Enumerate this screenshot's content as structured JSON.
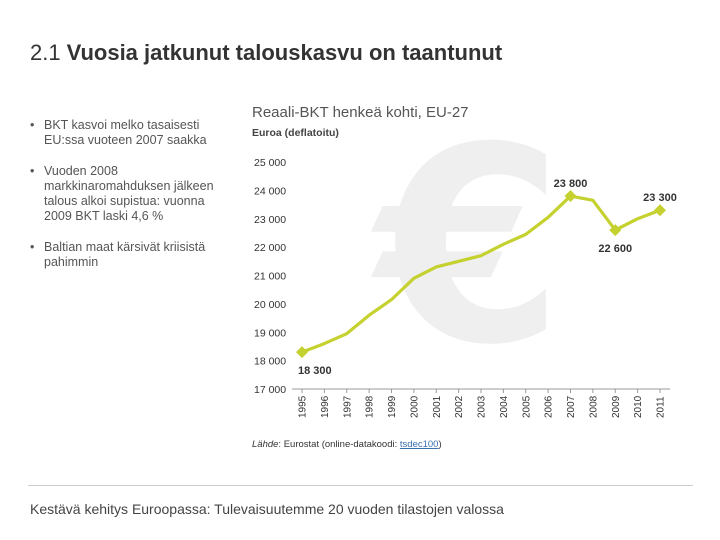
{
  "slide": {
    "number": "2.1",
    "title": "Vuosia jatkunut talouskasvu on taantunut",
    "bullet_symbol": "•",
    "bullets": [
      "BKT kasvoi melko tasaisesti EU:ssa vuoteen 2007 saakka",
      "Vuoden 2008 markkinaromahduksen jälkeen talous alkoi supistua: vuonna 2009 BKT laski 4,6 %",
      "Baltian maat kärsivät kriisistä pahimmin"
    ],
    "footer": "Kestävä kehitys Euroopassa: Tulevaisuutemme 20 vuoden tilastojen valossa"
  },
  "source": {
    "label": "Lähde",
    "text": ": Eurostat (online-datakoodi: ",
    "code": "tsdec100",
    "close": ")"
  },
  "colors": {
    "line": "#c5d12e",
    "watermark": "#efefef",
    "axis": "#999999",
    "text": "#333333"
  },
  "chart_data": {
    "type": "line",
    "title": "Reaali-BKT henkeä kohti, EU-27",
    "ylabel": "Euroa (deflatoitu)",
    "xlabel": "",
    "x": [
      "1995",
      "1996",
      "1997",
      "1998",
      "1999",
      "2000",
      "2001",
      "2002",
      "2003",
      "2004",
      "2005",
      "2006",
      "2007",
      "2008",
      "2009",
      "2010",
      "2011"
    ],
    "series": [
      {
        "values": [
          18300,
          18600,
          18950,
          19600,
          20150,
          20900,
          21300,
          21500,
          21700,
          22100,
          22450,
          23050,
          23800,
          23650,
          22600,
          23000,
          23300
        ]
      }
    ],
    "ylim": [
      17000,
      25000
    ],
    "yticks": [
      17000,
      18000,
      19000,
      20000,
      21000,
      22000,
      23000,
      24000,
      25000
    ],
    "ytick_labels": [
      "17 000",
      "18 000",
      "19 000",
      "20 000",
      "21 000",
      "22 000",
      "23 000",
      "24 000",
      "25 000"
    ],
    "data_labels": [
      {
        "x": "1995",
        "text": "18 300"
      },
      {
        "x": "2007",
        "text": "23 800"
      },
      {
        "x": "2009",
        "text": "22 600"
      },
      {
        "x": "2011",
        "text": "23 300"
      }
    ],
    "grid": false,
    "watermark_symbol": "€"
  }
}
